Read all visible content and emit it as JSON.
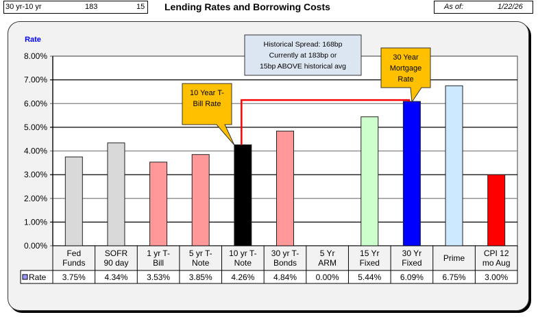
{
  "header": {
    "spread_label": "30 yr-10 yr",
    "spread_bp": "183",
    "spread_vs_avg": "15",
    "title": "Lending Rates and Borrowing Costs",
    "asof_label": "As of:",
    "asof_date": "1/22/26"
  },
  "annotations": {
    "spread_box": [
      "Historical Spread: 168bp",
      "Currently at 183bp  or",
      "15bp ABOVE historical avg"
    ],
    "tbill_callout": [
      "10 Year T-",
      "Bill Rate"
    ],
    "mortgage_callout": [
      "30 Year",
      "Mortgage",
      "Rate"
    ]
  },
  "chart_data": {
    "type": "bar",
    "title": "Lending Rates and Borrowing Costs",
    "ylabel": "Rate",
    "xlabel": "",
    "ylim": [
      0,
      8
    ],
    "yticks": [
      "0.00%",
      "1.00%",
      "2.00%",
      "3.00%",
      "4.00%",
      "5.00%",
      "6.00%",
      "7.00%",
      "8.00%"
    ],
    "grid": true,
    "legend": "data-table-left",
    "categories": [
      [
        "Fed",
        "Funds"
      ],
      [
        "SOFR",
        "90 day"
      ],
      [
        "1 yr  T-",
        "Bill"
      ],
      [
        "5 yr T-",
        "Note"
      ],
      [
        "10 yr T-",
        "Note"
      ],
      [
        "30 yr T-",
        "Bonds"
      ],
      [
        "5 Yr",
        "ARM"
      ],
      [
        "15 Yr",
        "Fixed"
      ],
      [
        "30 Yr",
        "Fixed"
      ],
      [
        "Prime"
      ],
      [
        "CPI 12",
        "mo Aug"
      ]
    ],
    "series": [
      {
        "name": "Rate",
        "values": [
          3.75,
          4.34,
          3.53,
          3.85,
          4.26,
          4.84,
          0.0,
          5.44,
          6.09,
          6.75,
          3.0
        ],
        "labels": [
          "3.75%",
          "4.34%",
          "3.53%",
          "3.85%",
          "4.26%",
          "4.84%",
          "0.00%",
          "5.44%",
          "6.09%",
          "6.75%",
          "3.00%"
        ],
        "colors": [
          "#d9d9d9",
          "#d9d9d9",
          "#ff9999",
          "#ff9999",
          "#000000",
          "#ff9999",
          "#ff9999",
          "#ccffcc",
          "#0000ff",
          "#cce9ff",
          "#ff0000"
        ],
        "legend_color": "#9999ff"
      }
    ],
    "spread_line": {
      "from_category": 4,
      "to_category": 8,
      "color": "#ff0000"
    }
  },
  "colors": {
    "callout_fill": "#ffc000",
    "spread_box_fill": "#dce6f2",
    "ylabel_color": "#0000ff"
  }
}
